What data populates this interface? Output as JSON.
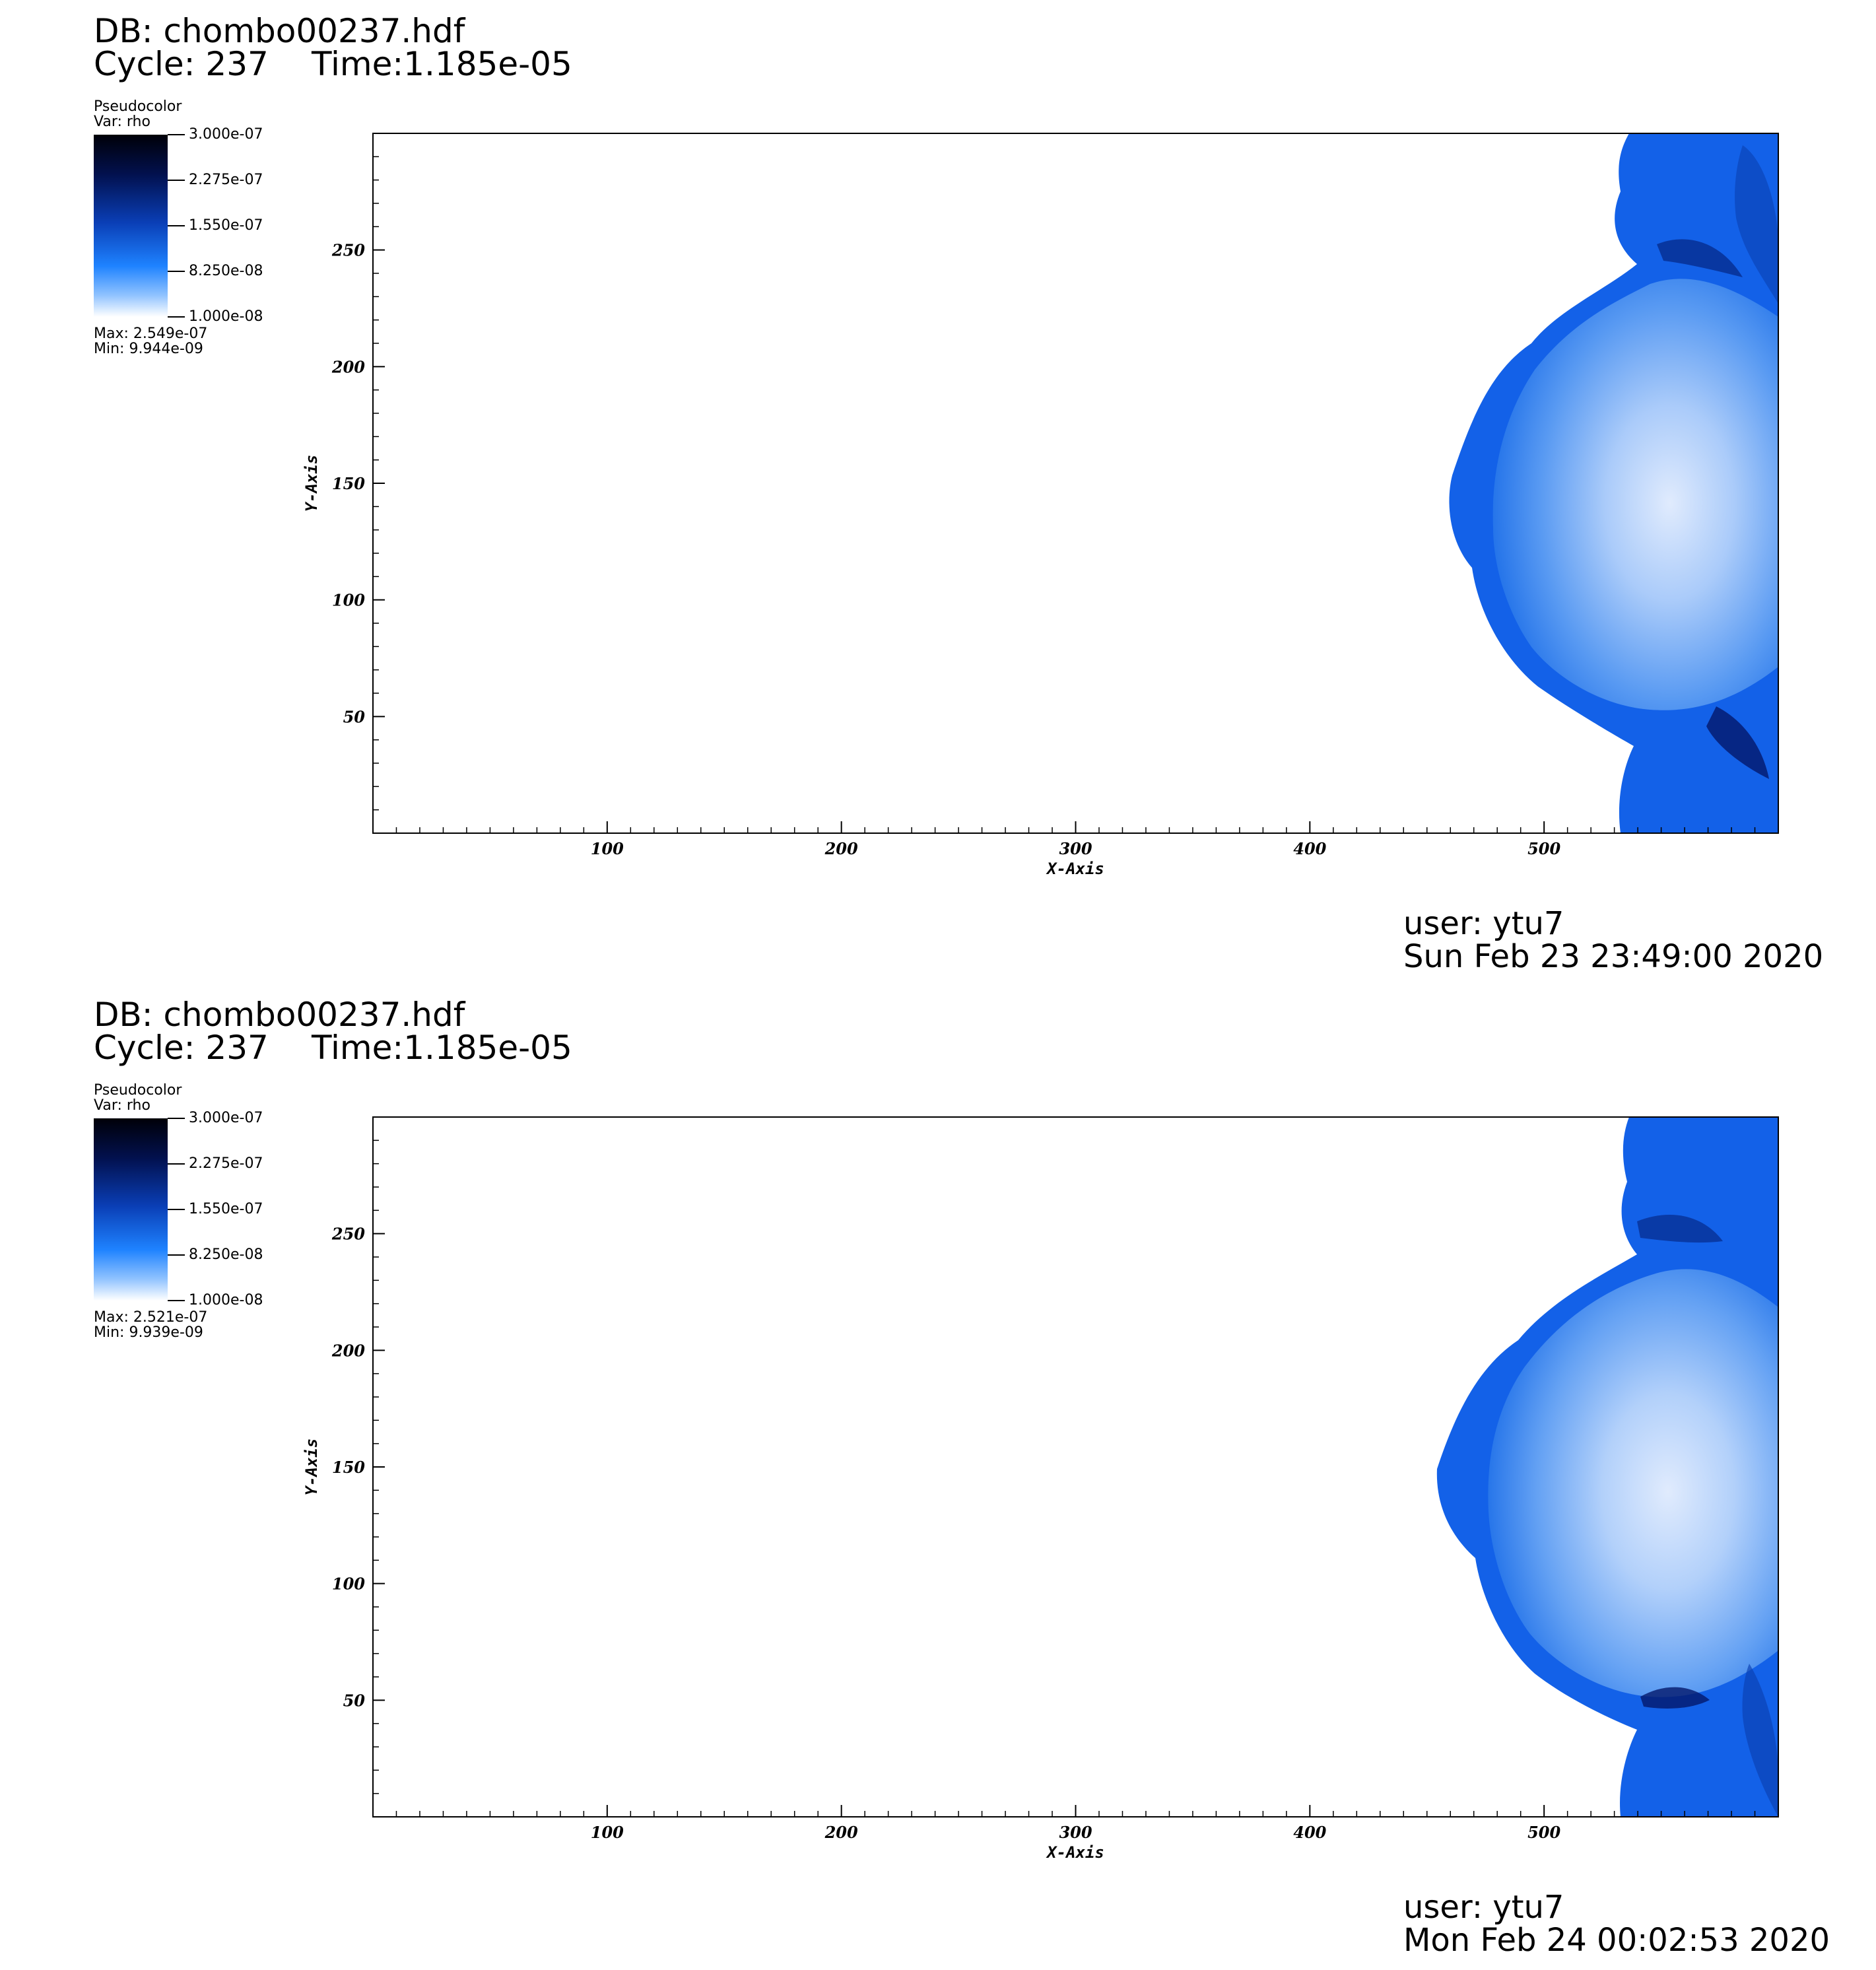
{
  "panels": [
    {
      "db_label": "DB: chombo00237.hdf",
      "cycle_label": "Cycle: 237",
      "time_label": "Time:1.185e-05",
      "legend": {
        "title": "Pseudocolor",
        "var_label": "Var: rho",
        "tick_labels": [
          "3.000e-07",
          "2.275e-07",
          "1.550e-07",
          "8.250e-08",
          "1.000e-08"
        ],
        "max_label": "Max:  2.549e-07",
        "min_label": "Min:  9.944e-09",
        "colors": [
          "#000008",
          "#02114f",
          "#0a3eb5",
          "#1e82ff",
          "#8fc2ff",
          "#ffffff"
        ]
      },
      "user_label": "user: ytu7",
      "date_label": "Sun Feb 23 23:49:00 2020"
    },
    {
      "db_label": "DB: chombo00237.hdf",
      "cycle_label": "Cycle: 237",
      "time_label": "Time:1.185e-05",
      "legend": {
        "title": "Pseudocolor",
        "var_label": "Var: rho",
        "tick_labels": [
          "3.000e-07",
          "2.275e-07",
          "1.550e-07",
          "8.250e-08",
          "1.000e-08"
        ],
        "max_label": "Max:  2.521e-07",
        "min_label": "Min:  9.939e-09",
        "colors": [
          "#000008",
          "#02114f",
          "#0a3eb5",
          "#1e82ff",
          "#8fc2ff",
          "#ffffff"
        ]
      },
      "user_label": "user: ytu7",
      "date_label": "Mon Feb 24 00:02:53 2020"
    }
  ],
  "chart_data": [
    {
      "type": "heatmap",
      "variable": "rho",
      "xlabel": "X-Axis",
      "ylabel": "Y-Axis",
      "xlim": [
        0,
        600
      ],
      "ylim": [
        0,
        300
      ],
      "xticks": [
        100,
        200,
        300,
        400,
        500
      ],
      "yticks": [
        50,
        100,
        150,
        200,
        250
      ],
      "color_range": [
        1e-08,
        3e-07
      ],
      "data_max": 2.549e-07,
      "data_min": 9.944e-09
    },
    {
      "type": "heatmap",
      "variable": "rho",
      "xlabel": "X-Axis",
      "ylabel": "Y-Axis",
      "xlim": [
        0,
        600
      ],
      "ylim": [
        0,
        300
      ],
      "xticks": [
        100,
        200,
        300,
        400,
        500
      ],
      "yticks": [
        50,
        100,
        150,
        200,
        250
      ],
      "color_range": [
        1e-08,
        3e-07
      ],
      "data_max": 2.521e-07,
      "data_min": 9.939e-09
    }
  ]
}
